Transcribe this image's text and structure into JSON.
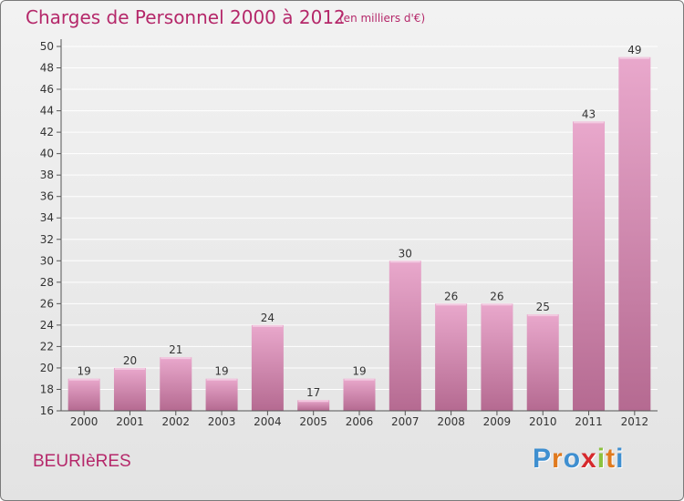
{
  "header": {
    "title": "Charges de Personnel 2000 à 2012",
    "subtitle": "(en milliers d'€)"
  },
  "footer": {
    "commune": "BEURIèRES",
    "logo_letters": [
      "P",
      "r",
      "o",
      "x",
      "i",
      "t",
      "i"
    ],
    "logo_colors": [
      "#3f8fd0",
      "#e07a1e",
      "#3f8fd0",
      "#d6292d",
      "#8cc23f",
      "#e07a1e",
      "#3f8fd0"
    ]
  },
  "colors": {
    "title": "#b5286a",
    "bar_top": "#e9a8cc",
    "bar_bottom": "#b56a91",
    "grid": "#ffffff"
  },
  "chart_data": {
    "type": "bar",
    "title": "Charges de Personnel 2000 à 2012",
    "subtitle": "(en milliers d'€)",
    "xlabel": "",
    "ylabel": "",
    "categories": [
      "2000",
      "2001",
      "2002",
      "2003",
      "2004",
      "2005",
      "2006",
      "2007",
      "2008",
      "2009",
      "2010",
      "2011",
      "2012"
    ],
    "values": [
      19,
      20,
      21,
      19,
      24,
      17,
      19,
      30,
      26,
      26,
      25,
      43,
      49
    ],
    "ylim": [
      16,
      50
    ],
    "ytick_step": 2,
    "grid": true,
    "data_labels": true
  }
}
